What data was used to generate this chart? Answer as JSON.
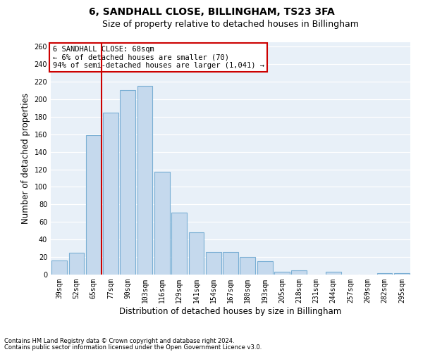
{
  "title": "6, SANDHALL CLOSE, BILLINGHAM, TS23 3FA",
  "subtitle": "Size of property relative to detached houses in Billingham",
  "xlabel": "Distribution of detached houses by size in Billingham",
  "ylabel": "Number of detached properties",
  "categories": [
    "39sqm",
    "52sqm",
    "65sqm",
    "77sqm",
    "90sqm",
    "103sqm",
    "116sqm",
    "129sqm",
    "141sqm",
    "154sqm",
    "167sqm",
    "180sqm",
    "193sqm",
    "205sqm",
    "218sqm",
    "231sqm",
    "244sqm",
    "257sqm",
    "269sqm",
    "282sqm",
    "295sqm"
  ],
  "values": [
    16,
    25,
    159,
    185,
    210,
    215,
    117,
    71,
    48,
    26,
    26,
    20,
    15,
    3,
    5,
    0,
    3,
    0,
    0,
    2,
    2
  ],
  "bar_color": "#c5d9ed",
  "bar_edge_color": "#7aafd4",
  "vline_index": 2,
  "vline_color": "#cc0000",
  "annotation_line1": "6 SANDHALL CLOSE: 68sqm",
  "annotation_line2": "← 6% of detached houses are smaller (70)",
  "annotation_line3": "94% of semi-detached houses are larger (1,041) →",
  "annotation_box_color": "#ffffff",
  "annotation_box_edge": "#cc0000",
  "ylim": [
    0,
    265
  ],
  "yticks": [
    0,
    20,
    40,
    60,
    80,
    100,
    120,
    140,
    160,
    180,
    200,
    220,
    240,
    260
  ],
  "footnote1": "Contains HM Land Registry data © Crown copyright and database right 2024.",
  "footnote2": "Contains public sector information licensed under the Open Government Licence v3.0.",
  "bg_color": "#e8f0f8",
  "grid_color": "#ffffff",
  "title_fontsize": 10,
  "subtitle_fontsize": 9,
  "axis_label_fontsize": 8.5,
  "tick_fontsize": 7,
  "annotation_fontsize": 7.5,
  "footnote_fontsize": 6
}
